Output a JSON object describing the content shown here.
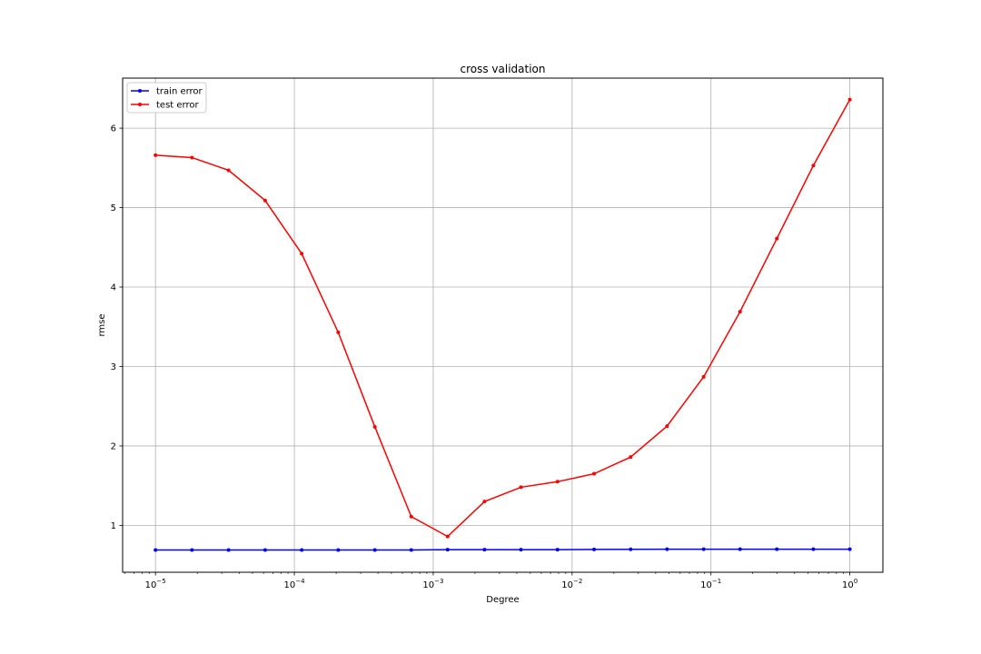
{
  "chart_data": {
    "type": "line",
    "title": "cross validation",
    "xlabel": "Degree",
    "ylabel": "rmse",
    "xscale": "log",
    "xlim": [
      5.8e-06,
      1.73
    ],
    "ylim": [
      0.41,
      6.63
    ],
    "grid": true,
    "legend_position": "top-left",
    "x_ticks": [
      {
        "value": 1e-05,
        "mantissa": "10",
        "exponent": "−5"
      },
      {
        "value": 0.0001,
        "mantissa": "10",
        "exponent": "−4"
      },
      {
        "value": 0.001,
        "mantissa": "10",
        "exponent": "−3"
      },
      {
        "value": 0.01,
        "mantissa": "10",
        "exponent": "−2"
      },
      {
        "value": 0.1,
        "mantissa": "10",
        "exponent": "−1"
      },
      {
        "value": 1,
        "mantissa": "10",
        "exponent": "0"
      }
    ],
    "y_ticks": [
      {
        "value": 1,
        "label": "1"
      },
      {
        "value": 2,
        "label": "2"
      },
      {
        "value": 3,
        "label": "3"
      },
      {
        "value": 4,
        "label": "4"
      },
      {
        "value": 5,
        "label": "5"
      },
      {
        "value": 6,
        "label": "6"
      }
    ],
    "x": [
      1e-05,
      1.83e-05,
      3.36e-05,
      6.16e-05,
      0.000113,
      0.000207,
      0.00038,
      0.000695,
      0.00127,
      0.00234,
      0.00428,
      0.00785,
      0.0144,
      0.0264,
      0.0483,
      0.0886,
      0.162,
      0.298,
      0.546,
      1.0
    ],
    "series": [
      {
        "name": "train error",
        "color": "#0000ff",
        "values": [
          0.69,
          0.69,
          0.69,
          0.69,
          0.69,
          0.69,
          0.69,
          0.69,
          0.695,
          0.695,
          0.695,
          0.695,
          0.697,
          0.698,
          0.7,
          0.7,
          0.7,
          0.7,
          0.7,
          0.7
        ]
      },
      {
        "name": "test error",
        "color": "#ff0000",
        "values": [
          5.66,
          5.63,
          5.47,
          5.09,
          4.42,
          3.43,
          2.24,
          1.11,
          0.86,
          1.3,
          1.48,
          1.55,
          1.65,
          1.86,
          2.25,
          2.87,
          3.69,
          4.61,
          5.53,
          6.36
        ]
      }
    ]
  }
}
